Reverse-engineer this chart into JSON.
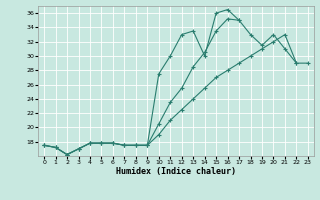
{
  "xlabel": "Humidex (Indice chaleur)",
  "bg_color": "#c8e8e0",
  "grid_color": "#ffffff",
  "line_color": "#2a7d6f",
  "xlim": [
    -0.5,
    23.5
  ],
  "ylim": [
    16,
    37
  ],
  "yticks": [
    18,
    20,
    22,
    24,
    26,
    28,
    30,
    32,
    34,
    36
  ],
  "xticks": [
    0,
    1,
    2,
    3,
    4,
    5,
    6,
    7,
    8,
    9,
    10,
    11,
    12,
    13,
    14,
    15,
    16,
    17,
    18,
    19,
    20,
    21,
    22,
    23
  ],
  "line1_y": [
    17.5,
    17.2,
    16.2,
    17.0,
    17.8,
    17.8,
    17.8,
    17.5,
    17.5,
    17.5,
    27.5,
    30.0,
    33.0,
    33.5,
    30.0,
    36.0,
    36.5,
    35.0,
    null,
    null,
    null,
    null,
    null,
    null
  ],
  "line2_y": [
    17.5,
    17.2,
    16.2,
    17.0,
    17.8,
    17.8,
    17.8,
    17.5,
    17.5,
    17.5,
    20.5,
    23.5,
    25.5,
    28.5,
    30.5,
    33.5,
    35.2,
    35.0,
    33.0,
    31.5,
    33.0,
    31.0,
    29.0,
    29.0
  ],
  "line3_y": [
    17.5,
    17.2,
    16.2,
    17.0,
    17.8,
    17.8,
    17.8,
    17.5,
    17.5,
    17.5,
    19.0,
    21.0,
    22.5,
    24.0,
    25.5,
    27.0,
    28.0,
    29.0,
    30.0,
    31.0,
    32.0,
    33.0,
    29.0,
    null
  ]
}
